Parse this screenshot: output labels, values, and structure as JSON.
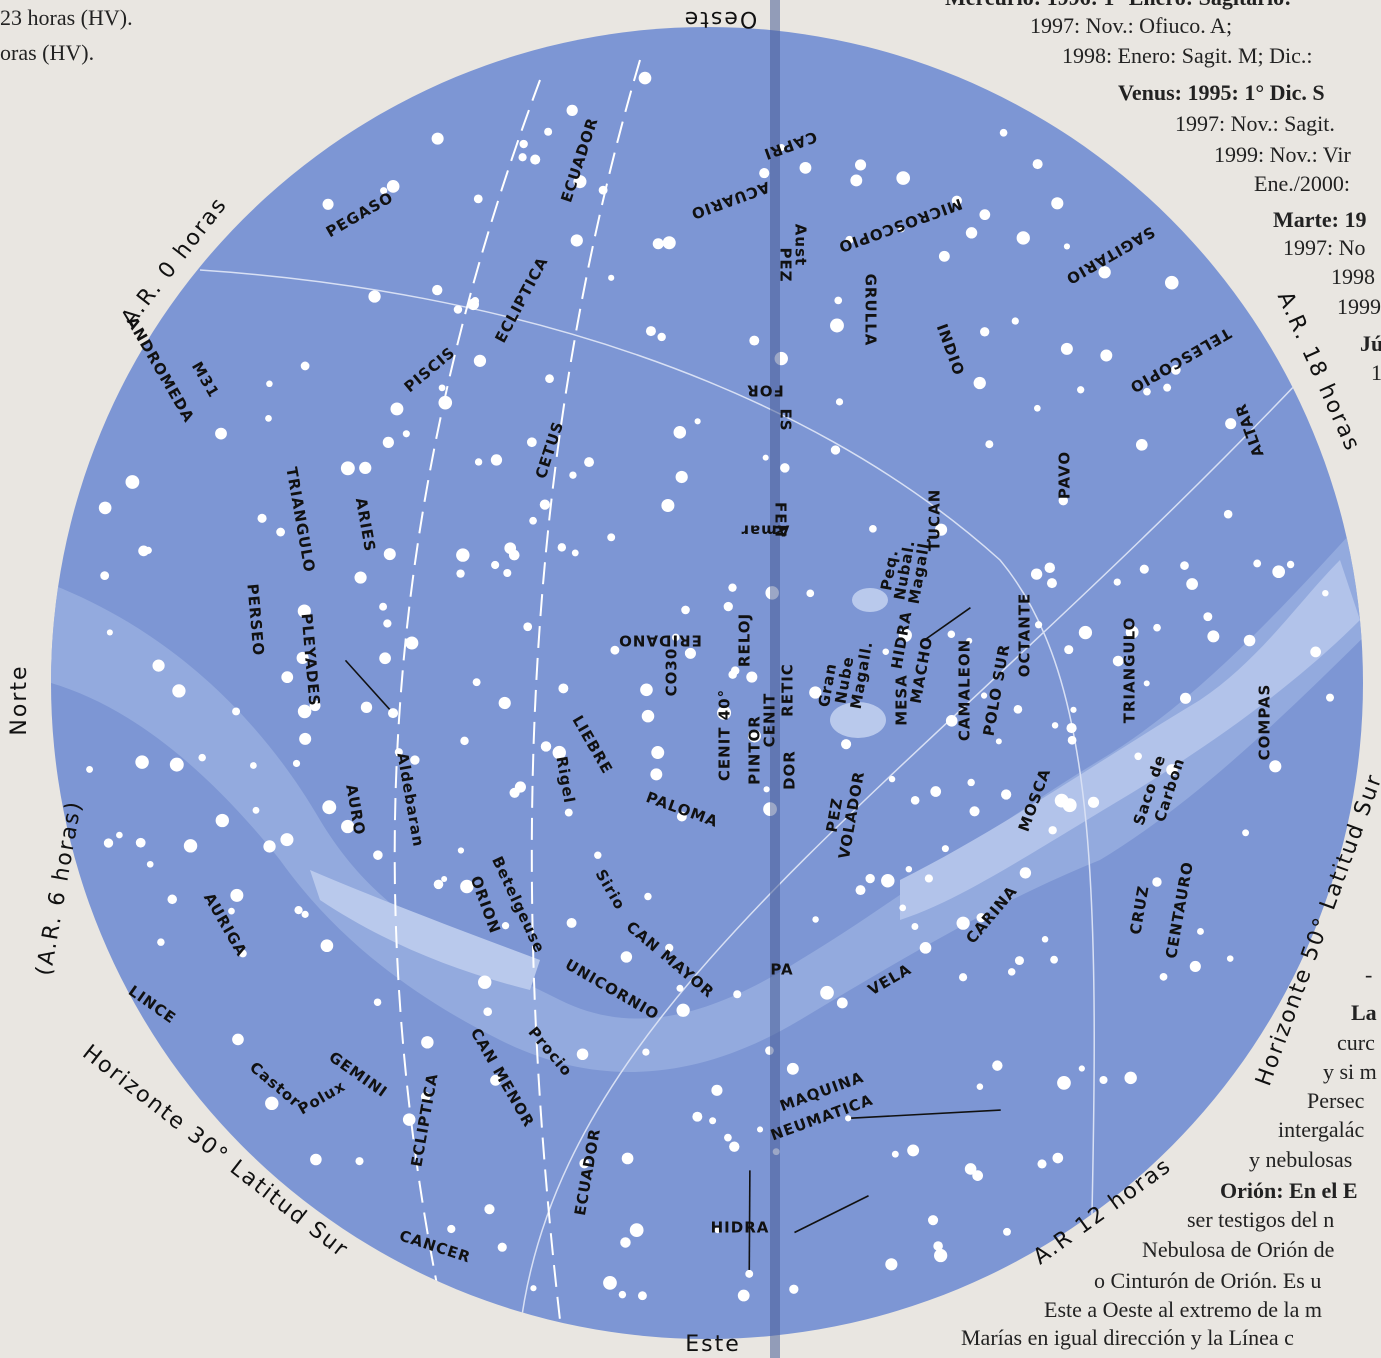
{
  "left_text": [
    "23 horas (HV).",
    "oras (HV)."
  ],
  "right_text": [
    "Mercurio: 1996: 1° Enero: Sagitario:",
    "1997: Nov.: Ofiuco. A;",
    "1998: Enero: Sagit. M; Dic.:",
    "Venus: 1995: 1° Dic. S",
    "1997: Nov.: Sagit.",
    "1999: Nov.: Vir",
    "Ene./2000:",
    "Marte: 19",
    "1997: No",
    "1998",
    "1999",
    "Jú",
    "1",
    "-",
    "La",
    "curc",
    "y si m",
    "Persec",
    "intergalác",
    "y nebulosas",
    "Orión: En el E",
    "ser testigos del n",
    "Nebulosa de Orión de",
    "o Cinturón de Orión. Es u",
    "Este a Oeste al extremo de la m",
    "Marías en igual dirección y la Línea c"
  ],
  "rim": [
    "Oeste",
    "Este",
    "Norte",
    "A.R. 0 horas",
    "A.R. 18 horas",
    "A.R 12 horas",
    "Horizonte 30° Latitud Sur",
    "Horizonte 50° Latitud Sur",
    "(A.R. 6 horas)"
  ],
  "labels": [
    "PEGASO",
    "ANDROMEDA",
    "M31",
    "TRIANGULO",
    "ARIES",
    "PISCIS",
    "ECLIPTICA",
    "ECUADOR",
    "CETUS",
    "PERSEO",
    "PLEYADES",
    "AURIGA",
    "AURO",
    "Aldebaran",
    "ORION",
    "Betelgeuse",
    "Rigel",
    "LIEBRE",
    "PALOMA",
    "Sirio",
    "CAN MAYOR",
    "UNICORNIO",
    "Procio",
    "CAN MENOR",
    "GEMINI",
    "Castor",
    "Polux",
    "LINCE",
    "ECLIPTICA",
    "ECUADOR",
    "CANCER",
    "HIDRA",
    "MAQUINA",
    "NEUMATICA",
    "PA",
    "VELA",
    "CARINA",
    "MOSCA",
    "Saco de",
    "Carbon",
    "CRUZ",
    "CENTAURO",
    "TRIANGULO",
    "COMPAS",
    "CAMALEON",
    "POLO SUR",
    "OCTANTE",
    "HIDRA",
    "MACHO",
    "MESA",
    "Gran",
    "Nube",
    "Magall.",
    "Peq.",
    "Nubal.",
    "Magall.",
    "TUCAN",
    "PEZ",
    "VOLADOR",
    "PINTOR",
    "CENIT 40°",
    "CENIT",
    "RETIC",
    "DOR",
    "CO30",
    "ERIDANO",
    "RELOJ",
    "FEN",
    "Amar",
    "ES",
    "FOR",
    "PEZ",
    "Aust",
    "ACUARIO",
    "CAPRI",
    "MICROSCOPIO",
    "GRULLA",
    "INDIO",
    "SAGITARIO",
    "TELESCOPIO",
    "ALTAR",
    "PAVO"
  ]
}
